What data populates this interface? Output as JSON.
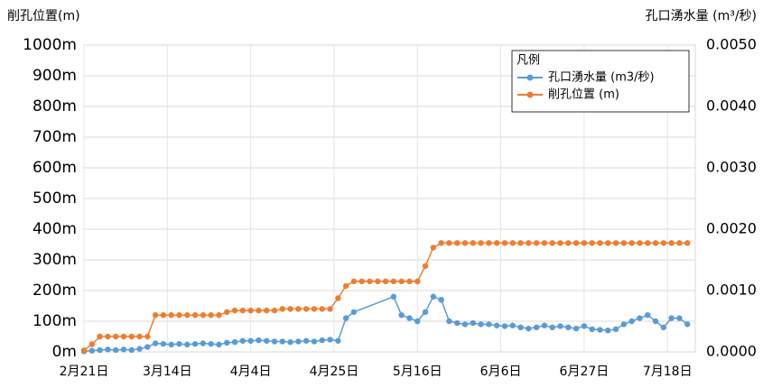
{
  "chart_data": {
    "type": "line",
    "y_axis_title": "削孔位置(m)",
    "y2_axis_title": "孔口湧水量 (m³/秒)",
    "legend_title": "凡例",
    "legend": "upper right",
    "grid": true,
    "xlim": [
      0,
      154
    ],
    "xticks": [
      {
        "value": 0,
        "label": "2月21日"
      },
      {
        "value": 21,
        "label": "3月14日"
      },
      {
        "value": 42,
        "label": "4月4日"
      },
      {
        "value": 63,
        "label": "4月25日"
      },
      {
        "value": 84,
        "label": "5月16日"
      },
      {
        "value": 105,
        "label": "6月6日"
      },
      {
        "value": 126,
        "label": "6月27日"
      },
      {
        "value": 147,
        "label": "7月18日"
      }
    ],
    "ylim": [
      0,
      1000
    ],
    "yticks": [
      {
        "value": 0,
        "label": "0m"
      },
      {
        "value": 100,
        "label": "100m"
      },
      {
        "value": 200,
        "label": "200m"
      },
      {
        "value": 300,
        "label": "300m"
      },
      {
        "value": 400,
        "label": "400m"
      },
      {
        "value": 500,
        "label": "500m"
      },
      {
        "value": 600,
        "label": "600m"
      },
      {
        "value": 700,
        "label": "700m"
      },
      {
        "value": 800,
        "label": "800m"
      },
      {
        "value": 900,
        "label": "900m"
      },
      {
        "value": 1000,
        "label": "1000m"
      }
    ],
    "y2lim": [
      0,
      0.005
    ],
    "y2ticks": [
      {
        "value": 0,
        "label": "0.0000"
      },
      {
        "value": 0.001,
        "label": "0.0010"
      },
      {
        "value": 0.002,
        "label": "0.0020"
      },
      {
        "value": 0.003,
        "label": "0.0030"
      },
      {
        "value": 0.004,
        "label": "0.0040"
      },
      {
        "value": 0.005,
        "label": "0.0050"
      }
    ],
    "series": [
      {
        "name": "孔口湧水量 (m3/秒)",
        "color": "#5b9bd5",
        "axis": "y2",
        "x": [
          0,
          2,
          4,
          6,
          8,
          10,
          12,
          14,
          16,
          18,
          20,
          22,
          24,
          26,
          28,
          30,
          32,
          34,
          36,
          38,
          40,
          42,
          44,
          46,
          48,
          50,
          52,
          54,
          56,
          58,
          60,
          62,
          64,
          66,
          68,
          78,
          80,
          82,
          84,
          86,
          88,
          90,
          92,
          94,
          96,
          98,
          100,
          102,
          104,
          106,
          108,
          110,
          112,
          114,
          116,
          118,
          120,
          122,
          124,
          126,
          128,
          130,
          132,
          134,
          136,
          138,
          140,
          142,
          144,
          146,
          148,
          150,
          152
        ],
        "values": [
          1e-05,
          2e-05,
          3e-05,
          4e-05,
          3e-05,
          4e-05,
          3e-05,
          5e-05,
          8e-05,
          0.00014,
          0.00013,
          0.00012,
          0.00013,
          0.00012,
          0.00013,
          0.00014,
          0.00013,
          0.00012,
          0.00015,
          0.00016,
          0.00018,
          0.00018,
          0.00019,
          0.00018,
          0.00017,
          0.00017,
          0.00016,
          0.00017,
          0.00018,
          0.00017,
          0.00019,
          0.0002,
          0.00018,
          0.00055,
          0.00065,
          0.0009,
          0.0006,
          0.00055,
          0.0005,
          0.00065,
          0.0009,
          0.00085,
          0.0005,
          0.00047,
          0.00045,
          0.00047,
          0.00045,
          0.00045,
          0.00043,
          0.00042,
          0.00043,
          0.0004,
          0.00038,
          0.0004,
          0.00043,
          0.0004,
          0.00042,
          0.0004,
          0.00038,
          0.00042,
          0.00037,
          0.00036,
          0.00035,
          0.00037,
          0.00045,
          0.0005,
          0.00055,
          0.0006,
          0.0005,
          0.0004,
          0.00055,
          0.00055,
          0.00045
        ]
      },
      {
        "name": "削孔位置 (m)",
        "color": "#ed7d31",
        "x": [
          0,
          2,
          4,
          6,
          8,
          10,
          12,
          14,
          16,
          18,
          20,
          22,
          24,
          26,
          28,
          30,
          32,
          34,
          36,
          38,
          40,
          42,
          44,
          46,
          48,
          50,
          52,
          54,
          56,
          58,
          60,
          62,
          64,
          66,
          68,
          70,
          72,
          74,
          76,
          78,
          80,
          82,
          84,
          86,
          88,
          90,
          92,
          94,
          96,
          98,
          100,
          102,
          104,
          106,
          108,
          110,
          112,
          114,
          116,
          118,
          120,
          122,
          124,
          126,
          128,
          130,
          132,
          134,
          136,
          138,
          140,
          142,
          144,
          146,
          148,
          150,
          152
        ],
        "values": [
          5,
          25,
          50,
          50,
          50,
          50,
          50,
          50,
          50,
          120,
          120,
          120,
          120,
          120,
          120,
          120,
          120,
          120,
          130,
          135,
          135,
          135,
          135,
          135,
          135,
          140,
          140,
          140,
          140,
          140,
          140,
          140,
          175,
          215,
          230,
          230,
          230,
          230,
          230,
          230,
          230,
          230,
          230,
          280,
          340,
          355,
          355,
          355,
          355,
          355,
          355,
          355,
          355,
          355,
          355,
          355,
          355,
          355,
          355,
          355,
          355,
          355,
          355,
          355,
          355,
          355,
          355,
          355,
          355,
          355,
          355,
          355,
          355,
          355,
          355,
          355,
          355
        ]
      }
    ]
  }
}
